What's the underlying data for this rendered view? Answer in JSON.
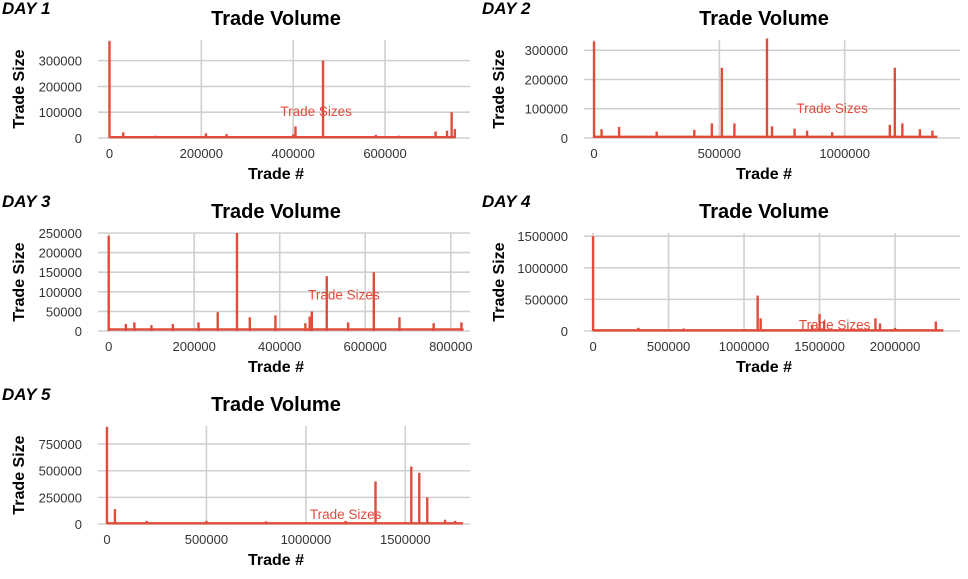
{
  "colors": {
    "series": "#e04b3a",
    "grid": "#d0d0d0",
    "text": "#000000"
  },
  "chart_data": [
    {
      "type": "line",
      "tag": "DAY 1",
      "title": "Trade Volume",
      "xlabel": "Trade #",
      "ylabel": "Trade Size",
      "annotation": "Trade Sizes",
      "annotation_at": [
        450000,
        85000
      ],
      "xlim": [
        -25000,
        785000
      ],
      "ylim": [
        0,
        380000
      ],
      "xticks": [
        0,
        200000,
        400000,
        600000
      ],
      "yticks": [
        0,
        100000,
        200000,
        300000
      ],
      "xmax": 752000,
      "baseline": 3000,
      "spikes": [
        [
          0,
          375000
        ],
        [
          30000,
          22000
        ],
        [
          100000,
          9000
        ],
        [
          210000,
          18000
        ],
        [
          255000,
          15000
        ],
        [
          400000,
          14000
        ],
        [
          405000,
          45000
        ],
        [
          465000,
          300000
        ],
        [
          580000,
          12000
        ],
        [
          630000,
          9000
        ],
        [
          710000,
          25000
        ],
        [
          735000,
          28000
        ],
        [
          745000,
          100000
        ],
        [
          752000,
          35000
        ]
      ]
    },
    {
      "type": "line",
      "tag": "DAY 2",
      "title": "Trade Volume",
      "xlabel": "Trade #",
      "ylabel": "Trade Size",
      "annotation": "Trade Sizes",
      "annotation_at": [
        950000,
        85000
      ],
      "xlim": [
        -40000,
        1460000
      ],
      "ylim": [
        0,
        335000
      ],
      "xticks": [
        0,
        500000,
        1000000
      ],
      "yticks": [
        0,
        100000,
        200000,
        300000
      ],
      "xmax": 1370000,
      "baseline": 4000,
      "spikes": [
        [
          0,
          330000
        ],
        [
          30000,
          30000
        ],
        [
          100000,
          38000
        ],
        [
          250000,
          22000
        ],
        [
          400000,
          28000
        ],
        [
          470000,
          50000
        ],
        [
          510000,
          240000
        ],
        [
          560000,
          50000
        ],
        [
          690000,
          340000
        ],
        [
          710000,
          40000
        ],
        [
          800000,
          32000
        ],
        [
          850000,
          25000
        ],
        [
          950000,
          20000
        ],
        [
          1180000,
          45000
        ],
        [
          1200000,
          240000
        ],
        [
          1230000,
          50000
        ],
        [
          1300000,
          30000
        ],
        [
          1350000,
          25000
        ]
      ]
    },
    {
      "type": "line",
      "tag": "DAY 3",
      "title": "Trade Volume",
      "xlabel": "Trade #",
      "ylabel": "Trade Size",
      "annotation": "Trade Sizes",
      "annotation_at": [
        550000,
        80000
      ],
      "xlim": [
        -25000,
        845000
      ],
      "ylim": [
        0,
        250000
      ],
      "xticks": [
        0,
        200000,
        400000,
        600000,
        800000
      ],
      "yticks": [
        0,
        50000,
        100000,
        150000,
        200000,
        250000
      ],
      "xmax": 830000,
      "baseline": 4000,
      "spikes": [
        [
          0,
          243000
        ],
        [
          40000,
          18000
        ],
        [
          60000,
          22000
        ],
        [
          100000,
          15000
        ],
        [
          150000,
          18000
        ],
        [
          210000,
          22000
        ],
        [
          255000,
          48000
        ],
        [
          300000,
          250000
        ],
        [
          330000,
          35000
        ],
        [
          390000,
          40000
        ],
        [
          460000,
          20000
        ],
        [
          470000,
          37000
        ],
        [
          475000,
          50000
        ],
        [
          510000,
          140000
        ],
        [
          560000,
          22000
        ],
        [
          620000,
          150000
        ],
        [
          680000,
          35000
        ],
        [
          760000,
          20000
        ],
        [
          825000,
          22000
        ]
      ]
    },
    {
      "type": "line",
      "tag": "DAY 4",
      "title": "Trade Volume",
      "xlabel": "Trade #",
      "ylabel": "Trade Size",
      "annotation": "Trade Sizes",
      "annotation_at": [
        1600000,
        20000
      ],
      "xlim": [
        -60000,
        2430000
      ],
      "ylim": [
        0,
        1550000
      ],
      "xticks": [
        0,
        500000,
        1000000,
        1500000,
        2000000
      ],
      "yticks": [
        0,
        500000,
        1000000,
        1500000
      ],
      "xmax": 2320000,
      "baseline": 10000,
      "spikes": [
        [
          0,
          1500000
        ],
        [
          300000,
          50000
        ],
        [
          600000,
          40000
        ],
        [
          1090000,
          560000
        ],
        [
          1110000,
          200000
        ],
        [
          1450000,
          100000
        ],
        [
          1500000,
          270000
        ],
        [
          1530000,
          160000
        ],
        [
          1870000,
          200000
        ],
        [
          1900000,
          120000
        ],
        [
          2000000,
          50000
        ],
        [
          2270000,
          150000
        ]
      ]
    },
    {
      "type": "line",
      "tag": "DAY 5",
      "title": "Trade Volume",
      "xlabel": "Trade #",
      "ylabel": "Trade Size",
      "annotation": "Trade Sizes",
      "annotation_at": [
        1200000,
        45000
      ],
      "xlim": [
        -45000,
        1825000
      ],
      "ylim": [
        0,
        920000
      ],
      "xticks": [
        0,
        500000,
        1000000,
        1500000
      ],
      "yticks": [
        0,
        250000,
        500000,
        750000
      ],
      "xmax": 1790000,
      "baseline": 6000,
      "spikes": [
        [
          0,
          910000
        ],
        [
          40000,
          140000
        ],
        [
          200000,
          30000
        ],
        [
          500000,
          30000
        ],
        [
          800000,
          25000
        ],
        [
          1200000,
          30000
        ],
        [
          1350000,
          400000
        ],
        [
          1500000,
          20000
        ],
        [
          1530000,
          540000
        ],
        [
          1570000,
          480000
        ],
        [
          1610000,
          250000
        ],
        [
          1700000,
          40000
        ],
        [
          1750000,
          30000
        ]
      ]
    }
  ]
}
